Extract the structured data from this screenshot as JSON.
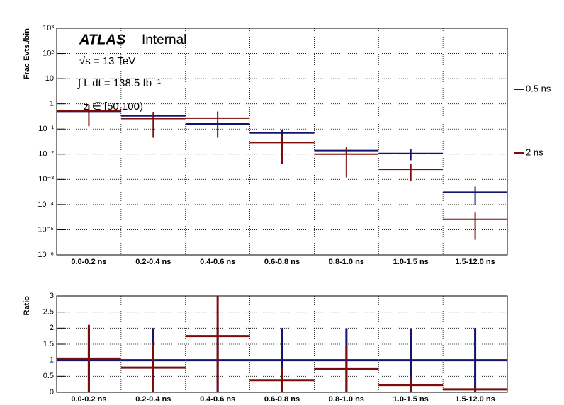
{
  "chart_data": [
    {
      "type": "errorbar",
      "y_label": "Frac Evts./bin",
      "log_y": true,
      "grid": true,
      "legend": "right",
      "annotations": {
        "experiment": "ATLAS",
        "status": "Internal",
        "energy": "√s = 13 TeV",
        "luminosity": "∫ L dt = 138.5 fb⁻¹",
        "selection": "z ∈ [50,100)"
      },
      "categories": [
        "0.0-0.2 ns",
        "0.2-0.4 ns",
        "0.4-0.6 ns",
        "0.6-0.8 ns",
        "0.8-1.0 ns",
        "1.0-1.5 ns",
        "1.5-12.0 ns"
      ],
      "ylim": [
        1e-06,
        1000
      ],
      "yticks": [
        {
          "value": 1e-06,
          "label": "10⁻⁶"
        },
        {
          "value": 1e-05,
          "label": "10⁻⁵"
        },
        {
          "value": 0.0001,
          "label": "10⁻⁴"
        },
        {
          "value": 0.001,
          "label": "10⁻³"
        },
        {
          "value": 0.01,
          "label": "10⁻²"
        },
        {
          "value": 0.1,
          "label": "10⁻¹"
        },
        1,
        10,
        {
          "value": 100,
          "label": "10²"
        },
        {
          "value": 1000,
          "label": "10³"
        }
      ],
      "series": [
        {
          "name": "0.5 ns",
          "color": "#14146e",
          "values": [
            0.5,
            0.33,
            0.16,
            0.07,
            0.014,
            0.0107,
            0.00031
          ],
          "errors": [
            0.05,
            0.04,
            0.02,
            0.02,
            0.004,
            0.005,
            0.00021
          ]
        },
        {
          "name": "2 ns",
          "color": "#7a0c0c",
          "values": [
            0.52,
            0.26,
            0.27,
            0.029,
            0.01,
            0.0025,
            2.6e-05
          ],
          "errors": [
            0.39,
            0.215,
            0.225,
            0.025,
            0.0088,
            0.0016,
            2.2e-05
          ]
        }
      ]
    },
    {
      "type": "errorbar",
      "y_label": "Ratio",
      "log_y": false,
      "grid": true,
      "categories": [
        "0.0-0.2 ns",
        "0.2-0.4 ns",
        "0.4-0.6 ns",
        "0.6-0.8 ns",
        "0.8-1.0 ns",
        "1.0-1.5 ns",
        "1.5-12.0 ns"
      ],
      "ylim": [
        0,
        3
      ],
      "yticks": [
        0,
        0.5,
        1,
        1.5,
        2,
        2.5,
        3
      ],
      "series": [
        {
          "name": "0.5 ns",
          "color": "#14146e",
          "values": [
            1,
            1,
            1,
            1,
            1,
            1,
            1
          ],
          "errors": [
            1,
            1,
            1,
            1,
            1,
            1,
            1
          ]
        },
        {
          "name": "2 ns",
          "color": "#7a0c0c",
          "values": [
            1.05,
            0.77,
            1.75,
            0.38,
            0.72,
            0.23,
            0.09
          ],
          "errors": [
            1.05,
            0.77,
            1.75,
            0.38,
            0.72,
            0.23,
            0.09
          ]
        }
      ]
    }
  ]
}
